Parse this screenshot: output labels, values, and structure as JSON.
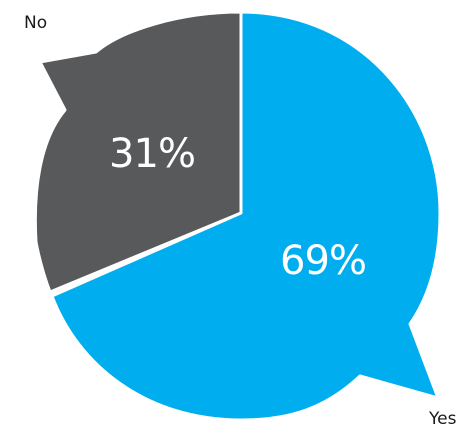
{
  "chart_data": {
    "type": "pie",
    "slices": [
      {
        "label": "No",
        "value": 31,
        "display": "31%",
        "color": "#58595b"
      },
      {
        "label": "Yes",
        "value": 69,
        "display": "69%",
        "color": "#00aeef"
      }
    ]
  }
}
